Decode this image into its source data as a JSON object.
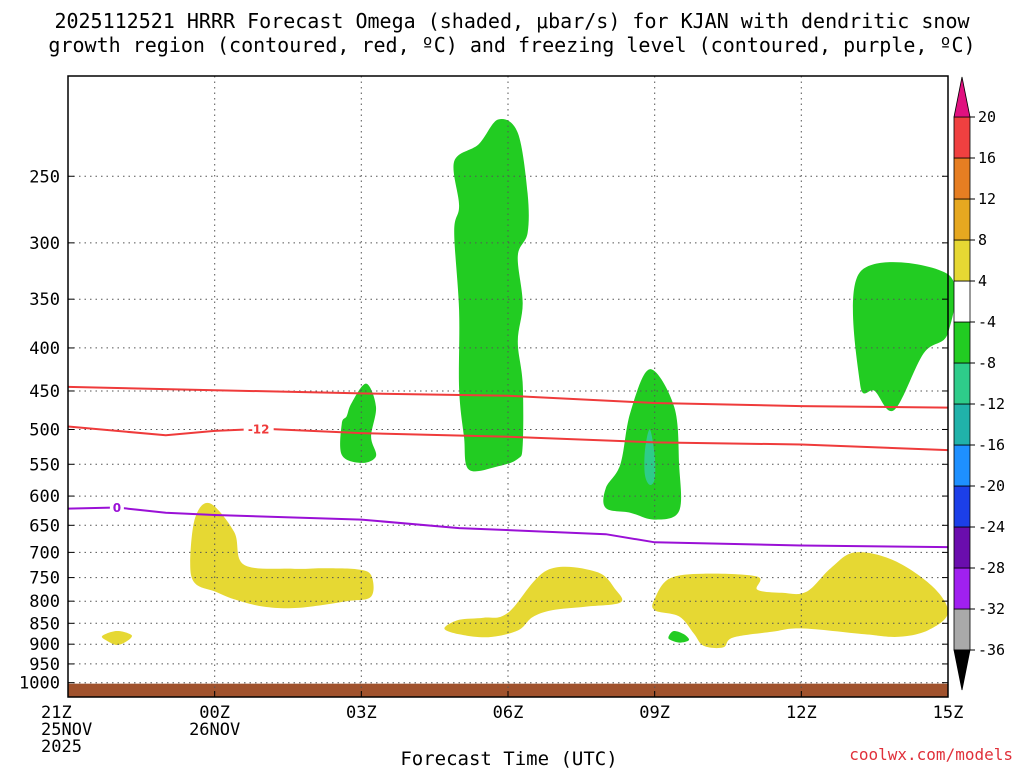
{
  "chart_data": {
    "type": "time-height-contour",
    "title_lines": [
      "2025112521 HRRR Forecast Omega (shaded, μbar/s) for KJAN with dendritic snow",
      "growth region (contoured, red, ºC) and freezing level (contoured, purple, ºC)"
    ],
    "xlabel": "Forecast Time (UTC)",
    "credit": "coolwx.com/models",
    "x_ticks": [
      {
        "hour": 0,
        "lines": [
          "21Z",
          "25NOV",
          "2025"
        ]
      },
      {
        "hour": 3,
        "lines": [
          "00Z",
          "26NOV"
        ]
      },
      {
        "hour": 6,
        "lines": [
          "03Z"
        ]
      },
      {
        "hour": 9,
        "lines": [
          "06Z"
        ]
      },
      {
        "hour": 12,
        "lines": [
          "09Z"
        ]
      },
      {
        "hour": 15,
        "lines": [
          "12Z"
        ]
      },
      {
        "hour": 18,
        "lines": [
          "15Z"
        ]
      }
    ],
    "xlim": [
      0,
      18
    ],
    "ylim_hpa": [
      1040,
      190
    ],
    "y_scale": "log-pressure",
    "y_ticks": [
      250,
      300,
      350,
      400,
      450,
      500,
      550,
      600,
      650,
      700,
      750,
      800,
      850,
      900,
      950,
      1000
    ],
    "grid": true,
    "ground_level_hpa": 1000,
    "ground_color": "#a0522d",
    "colorbar": {
      "levels": [
        -36,
        -32,
        -28,
        -24,
        -20,
        -16,
        -12,
        -8,
        -4,
        4,
        8,
        12,
        16,
        20
      ],
      "colors": [
        "#000000",
        "#a9a9a9",
        "#a020f0",
        "#6a0dad",
        "#1c3fe8",
        "#1e90ff",
        "#20b2aa",
        "#2ecc8a",
        "#22cc22",
        "#ffffff",
        "#e6d833",
        "#e6a820",
        "#e67e22",
        "#f04040",
        "#e0117f"
      ],
      "over_color": "#e0117f",
      "under_color": "#000000"
    },
    "contour_lines": [
      {
        "name": "dgz-upper",
        "value": -16,
        "color": "#ef3b3b",
        "label": "",
        "points": [
          [
            0,
            445
          ],
          [
            3,
            449
          ],
          [
            6,
            453
          ],
          [
            9,
            456
          ],
          [
            12,
            465
          ],
          [
            15,
            469
          ],
          [
            18,
            471
          ]
        ]
      },
      {
        "name": "dgz-lower",
        "value": -12,
        "color": "#ef3b3b",
        "label": "-12",
        "label_hour": 3.9,
        "points": [
          [
            0,
            496
          ],
          [
            2,
            508
          ],
          [
            3,
            502
          ],
          [
            4,
            499
          ],
          [
            6,
            505
          ],
          [
            9,
            510
          ],
          [
            12,
            518
          ],
          [
            15,
            521
          ],
          [
            18,
            529
          ]
        ]
      },
      {
        "name": "freezing-level",
        "value": 0,
        "color": "#9a10d6",
        "label": "0",
        "label_hour": 1,
        "points": [
          [
            0,
            621
          ],
          [
            1,
            619
          ],
          [
            2,
            628
          ],
          [
            3,
            632
          ],
          [
            6,
            640
          ],
          [
            8,
            655
          ],
          [
            11,
            666
          ],
          [
            12,
            681
          ],
          [
            15,
            687
          ],
          [
            18,
            690
          ]
        ]
      }
    ],
    "shaded_regions": [
      {
        "name": "omega-rising-1",
        "level": "-4 to -8",
        "color": "#22cc22",
        "points": [
          [
            5.8,
            465
          ],
          [
            6.1,
            441
          ],
          [
            6.3,
            470
          ],
          [
            6.2,
            510
          ],
          [
            6.3,
            538
          ],
          [
            6.0,
            548
          ],
          [
            5.6,
            536
          ],
          [
            5.6,
            492
          ],
          [
            5.7,
            482
          ]
        ]
      },
      {
        "name": "omega-rising-2",
        "level": "-4 to -8",
        "color": "#22cc22",
        "points": [
          [
            8.8,
            214
          ],
          [
            9.2,
            222
          ],
          [
            9.4,
            262
          ],
          [
            9.4,
            292
          ],
          [
            9.2,
            311
          ],
          [
            9.3,
            354
          ],
          [
            9.2,
            393
          ],
          [
            9.3,
            441
          ],
          [
            9.3,
            522
          ],
          [
            9.2,
            542
          ],
          [
            8.8,
            553
          ],
          [
            8.2,
            558
          ],
          [
            8.1,
            510
          ],
          [
            8.0,
            447
          ],
          [
            8.0,
            361
          ],
          [
            7.9,
            291
          ],
          [
            8.0,
            271
          ],
          [
            7.9,
            240
          ],
          [
            8.4,
            229
          ]
        ]
      },
      {
        "name": "omega-rising-3",
        "level": "-4 to -8",
        "color": "#22cc22",
        "points": [
          [
            11.9,
            424
          ],
          [
            12.4,
            470
          ],
          [
            12.5,
            550
          ],
          [
            12.5,
            625
          ],
          [
            12.0,
            640
          ],
          [
            11.5,
            628
          ],
          [
            11.0,
            620
          ],
          [
            11.0,
            587
          ],
          [
            11.3,
            550
          ],
          [
            11.5,
            478
          ]
        ]
      },
      {
        "name": "omega-rising-4",
        "level": "-8 to -12",
        "color": "#2ecc8a",
        "points": [
          [
            11.9,
            500
          ],
          [
            12.0,
            537
          ],
          [
            12.0,
            572
          ],
          [
            11.9,
            582
          ],
          [
            11.8,
            566
          ],
          [
            11.8,
            530
          ]
        ]
      },
      {
        "name": "omega-rising-5",
        "level": "-4 to -8",
        "color": "#22cc22",
        "points": [
          [
            16.2,
            325
          ],
          [
            18.0,
            327
          ],
          [
            18.0,
            384
          ],
          [
            17.5,
            406
          ],
          [
            16.9,
            474
          ],
          [
            16.5,
            450
          ],
          [
            16.2,
            441
          ]
        ]
      },
      {
        "name": "omega-rising-6",
        "level": "-4 to -8",
        "color": "#22cc22",
        "points": [
          [
            12.4,
            868
          ],
          [
            12.6,
            876
          ],
          [
            12.7,
            890
          ],
          [
            12.5,
            896
          ],
          [
            12.3,
            888
          ],
          [
            12.3,
            878
          ]
        ]
      },
      {
        "name": "omega-sinking-1",
        "level": "4 to 8",
        "color": "#e6d833",
        "points": [
          [
            2.6,
            637
          ],
          [
            2.9,
            612
          ],
          [
            3.4,
            662
          ],
          [
            3.6,
            724
          ],
          [
            4.6,
            732
          ],
          [
            5.2,
            731
          ],
          [
            5.9,
            733
          ],
          [
            6.2,
            745
          ],
          [
            6.2,
            790
          ],
          [
            5.7,
            800
          ],
          [
            4.7,
            815
          ],
          [
            4.0,
            812
          ],
          [
            3.4,
            796
          ],
          [
            3.0,
            779
          ],
          [
            2.6,
            762
          ],
          [
            2.5,
            720
          ]
        ]
      },
      {
        "name": "omega-sinking-2",
        "level": "4 to 8",
        "color": "#e6d833",
        "points": [
          [
            9.8,
            735
          ],
          [
            10.8,
            738
          ],
          [
            11.2,
            775
          ],
          [
            11.3,
            803
          ],
          [
            10.6,
            812
          ],
          [
            9.9,
            820
          ],
          [
            9.5,
            836
          ],
          [
            9.2,
            867
          ],
          [
            8.6,
            883
          ],
          [
            8.0,
            876
          ],
          [
            7.7,
            862
          ],
          [
            8.0,
            842
          ],
          [
            8.5,
            837
          ],
          [
            9.0,
            826
          ]
        ]
      },
      {
        "name": "omega-sinking-3",
        "level": "4 to 8",
        "color": "#e6d833",
        "points": [
          [
            1.0,
            868
          ],
          [
            1.3,
            878
          ],
          [
            1.2,
            893
          ],
          [
            1.0,
            902
          ],
          [
            0.8,
            892
          ],
          [
            0.7,
            880
          ]
        ]
      },
      {
        "name": "omega-sinking-4",
        "level": "4 to 8",
        "color": "#e6d833",
        "points": [
          [
            12.3,
            752
          ],
          [
            13.0,
            742
          ],
          [
            14.1,
            748
          ],
          [
            14.1,
            775
          ],
          [
            14.6,
            782
          ],
          [
            15.1,
            780
          ],
          [
            15.6,
            731
          ],
          [
            16.1,
            700
          ],
          [
            16.9,
            716
          ],
          [
            17.7,
            770
          ],
          [
            18.0,
            826
          ],
          [
            17.6,
            866
          ],
          [
            17.0,
            882
          ],
          [
            16.3,
            876
          ],
          [
            15.0,
            862
          ],
          [
            14.4,
            870
          ],
          [
            13.6,
            884
          ],
          [
            13.4,
            908
          ],
          [
            13.0,
            904
          ],
          [
            12.8,
            874
          ],
          [
            12.5,
            834
          ],
          [
            12.0,
            820
          ],
          [
            12.0,
            795
          ]
        ]
      }
    ]
  }
}
